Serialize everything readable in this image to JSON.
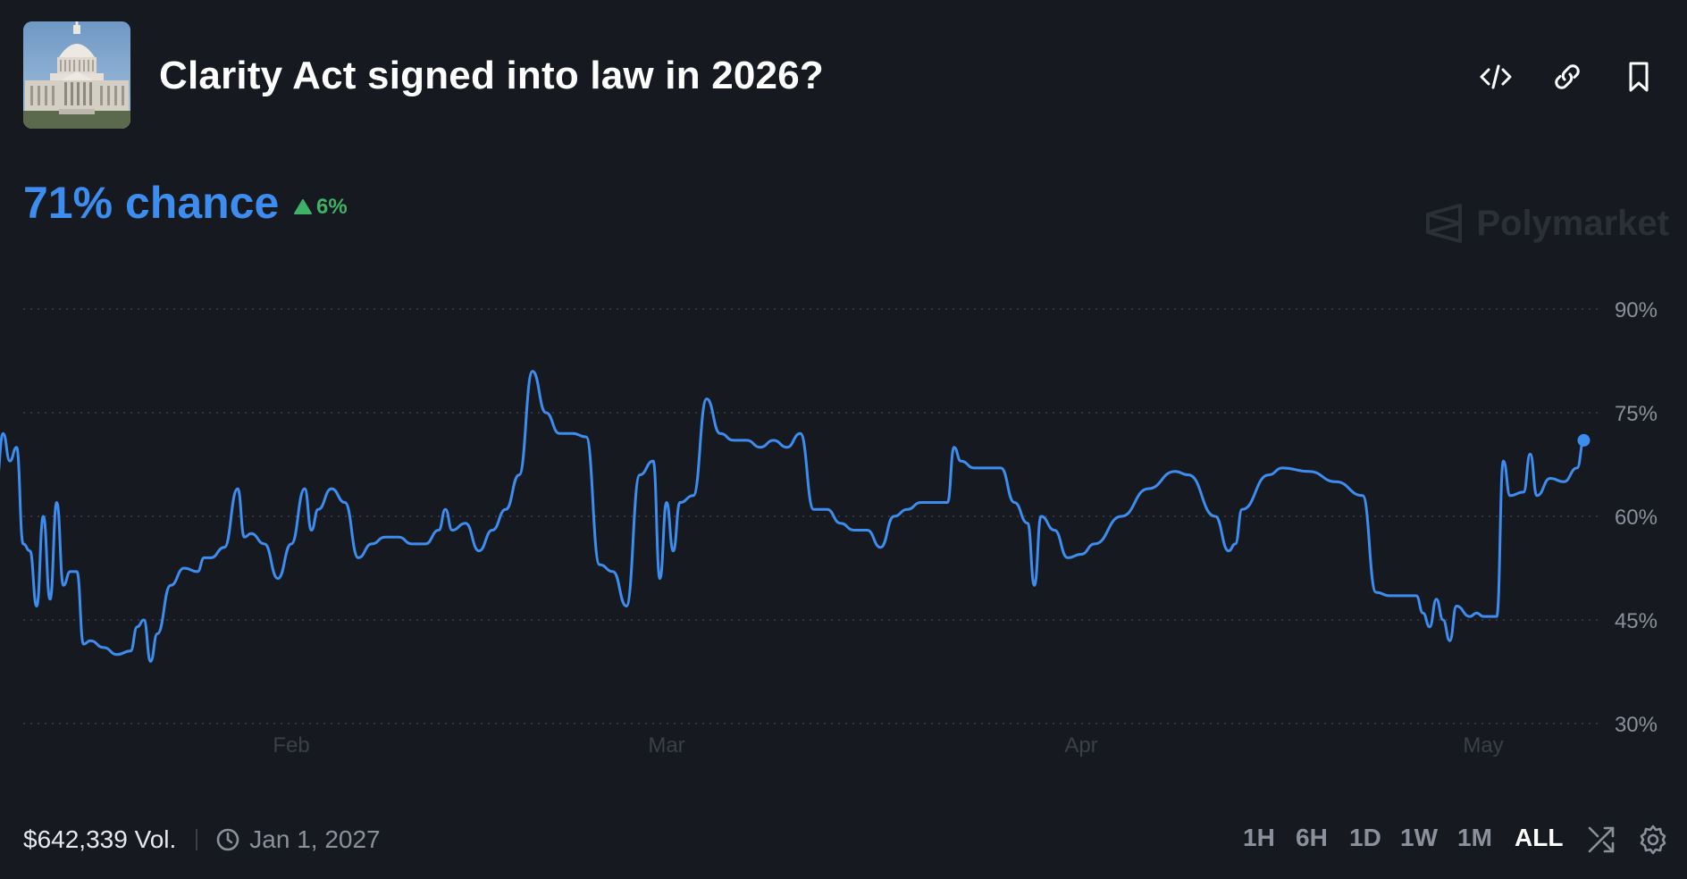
{
  "header": {
    "title": "Clarity Act signed into law in 2026?",
    "image_alt": "capitol-building"
  },
  "summary": {
    "chance_text": "71% chance",
    "change_text": "6%",
    "change_direction": "up"
  },
  "watermark": {
    "text": "Polymarket"
  },
  "footer": {
    "volume": "$642,339 Vol.",
    "end_date": "Jan 1, 2027",
    "ranges": [
      "1H",
      "6H",
      "1D",
      "1W",
      "1M",
      "ALL"
    ],
    "active_range": "ALL"
  },
  "icons": {
    "embed": "code-icon",
    "copy_link": "link-icon",
    "bookmark": "bookmark-icon",
    "clock": "clock-icon",
    "shuffle": "shuffle-icon",
    "settings": "gear-icon"
  },
  "colors": {
    "background": "#161a20",
    "line": "#3d8df0",
    "positive": "#3fb268",
    "muted": "#8b919c",
    "grid": "#3a3f48"
  },
  "chart_data": {
    "type": "line",
    "title": "",
    "xlabel": "",
    "ylabel": "",
    "x_ticks": [
      "Feb",
      "Mar",
      "Apr",
      "May"
    ],
    "x_tick_dates": [
      "2026-02-01",
      "2026-03-01",
      "2026-04-01",
      "2026-05-01"
    ],
    "y_ticks": [
      "90%",
      "75%",
      "60%",
      "45%",
      "30%"
    ],
    "y_tick_values": [
      90,
      75,
      60,
      45,
      30
    ],
    "ylim": [
      30,
      90
    ],
    "grid": true,
    "gridline_style": "dotted",
    "series": [
      {
        "values": [
          [
            "2026-01-10",
            65
          ],
          [
            "2026-01-10T12",
            72
          ],
          [
            "2026-01-11",
            68
          ],
          [
            "2026-01-11T12",
            70
          ],
          [
            "2026-01-12",
            56
          ],
          [
            "2026-01-12T12",
            55
          ],
          [
            "2026-01-13",
            47
          ],
          [
            "2026-01-13T12",
            60
          ],
          [
            "2026-01-14",
            48
          ],
          [
            "2026-01-14T12",
            62
          ],
          [
            "2026-01-15",
            50
          ],
          [
            "2026-01-15T12",
            52
          ],
          [
            "2026-01-16",
            52
          ],
          [
            "2026-01-16T12",
            41.5
          ],
          [
            "2026-01-17",
            42
          ],
          [
            "2026-01-18",
            41
          ],
          [
            "2026-01-19",
            40
          ],
          [
            "2026-01-20",
            40.5
          ],
          [
            "2026-01-20T12",
            44
          ],
          [
            "2026-01-21",
            45
          ],
          [
            "2026-01-21T12",
            39
          ],
          [
            "2026-01-22",
            43
          ],
          [
            "2026-01-23",
            50
          ],
          [
            "2026-01-24",
            52.5
          ],
          [
            "2026-01-25",
            52
          ],
          [
            "2026-01-25T12",
            54
          ],
          [
            "2026-01-26",
            54
          ],
          [
            "2026-01-27",
            55.5
          ],
          [
            "2026-01-28",
            64
          ],
          [
            "2026-01-28T12",
            57
          ],
          [
            "2026-01-29",
            57.5
          ],
          [
            "2026-01-30",
            56
          ],
          [
            "2026-01-31",
            51
          ],
          [
            "2026-02-01",
            56
          ],
          [
            "2026-02-02",
            64
          ],
          [
            "2026-02-02T12",
            58
          ],
          [
            "2026-02-03",
            61
          ],
          [
            "2026-02-04",
            64
          ],
          [
            "2026-02-05",
            62
          ],
          [
            "2026-02-06",
            54
          ],
          [
            "2026-02-07",
            56
          ],
          [
            "2026-02-08",
            57
          ],
          [
            "2026-02-09",
            57
          ],
          [
            "2026-02-10",
            56
          ],
          [
            "2026-02-11",
            56
          ],
          [
            "2026-02-12",
            58
          ],
          [
            "2026-02-12T12",
            61
          ],
          [
            "2026-02-13",
            58
          ],
          [
            "2026-02-14",
            59
          ],
          [
            "2026-02-15",
            55
          ],
          [
            "2026-02-16",
            58
          ],
          [
            "2026-02-17",
            61
          ],
          [
            "2026-02-18",
            66
          ],
          [
            "2026-02-19",
            81
          ],
          [
            "2026-02-20",
            75
          ],
          [
            "2026-02-21",
            72
          ],
          [
            "2026-02-22",
            72
          ],
          [
            "2026-02-23",
            71.5
          ],
          [
            "2026-02-24",
            53
          ],
          [
            "2026-02-25",
            52
          ],
          [
            "2026-02-26",
            47
          ],
          [
            "2026-02-27",
            66
          ],
          [
            "2026-02-28",
            68
          ],
          [
            "2026-02-28T12",
            51
          ],
          [
            "2026-03-01",
            62
          ],
          [
            "2026-03-01T12",
            55
          ],
          [
            "2026-03-02",
            62
          ],
          [
            "2026-03-03",
            63
          ],
          [
            "2026-03-04",
            77
          ],
          [
            "2026-03-05",
            72
          ],
          [
            "2026-03-06",
            71
          ],
          [
            "2026-03-07",
            71
          ],
          [
            "2026-03-08",
            70
          ],
          [
            "2026-03-09",
            71
          ],
          [
            "2026-03-10",
            70
          ],
          [
            "2026-03-11",
            72
          ],
          [
            "2026-03-12",
            61
          ],
          [
            "2026-03-13",
            61
          ],
          [
            "2026-03-14",
            59
          ],
          [
            "2026-03-15",
            58
          ],
          [
            "2026-03-16",
            58
          ],
          [
            "2026-03-17",
            55.5
          ],
          [
            "2026-03-18",
            60
          ],
          [
            "2026-03-19",
            61
          ],
          [
            "2026-03-20",
            62
          ],
          [
            "2026-03-21",
            62
          ],
          [
            "2026-03-22",
            62
          ],
          [
            "2026-03-22T12",
            70
          ],
          [
            "2026-03-23",
            68
          ],
          [
            "2026-03-24",
            67
          ],
          [
            "2026-03-25",
            67
          ],
          [
            "2026-03-26",
            67
          ],
          [
            "2026-03-27",
            62
          ],
          [
            "2026-03-28",
            59
          ],
          [
            "2026-03-28T12",
            50
          ],
          [
            "2026-03-29",
            60
          ],
          [
            "2026-03-30",
            58
          ],
          [
            "2026-03-31",
            54
          ],
          [
            "2026-04-01",
            54.5
          ],
          [
            "2026-04-02",
            56
          ],
          [
            "2026-04-04",
            60
          ],
          [
            "2026-04-06",
            64
          ],
          [
            "2026-04-08",
            66.5
          ],
          [
            "2026-04-09",
            66
          ],
          [
            "2026-04-11",
            60
          ],
          [
            "2026-04-12",
            55
          ],
          [
            "2026-04-12T12",
            56
          ],
          [
            "2026-04-13",
            61
          ],
          [
            "2026-04-15",
            66
          ],
          [
            "2026-04-16",
            67
          ],
          [
            "2026-04-18",
            66.5
          ],
          [
            "2026-04-20",
            65
          ],
          [
            "2026-04-22",
            63
          ],
          [
            "2026-04-23",
            49
          ],
          [
            "2026-04-24",
            48.5
          ],
          [
            "2026-04-25",
            48.5
          ],
          [
            "2026-04-26",
            48.5
          ],
          [
            "2026-04-26T12",
            46
          ],
          [
            "2026-04-27",
            44
          ],
          [
            "2026-04-27T12",
            48
          ],
          [
            "2026-04-28",
            45
          ],
          [
            "2026-04-28T12",
            42
          ],
          [
            "2026-04-29",
            47
          ],
          [
            "2026-04-30",
            45.5
          ],
          [
            "2026-04-30T12",
            46
          ],
          [
            "2026-05-01",
            45.5
          ],
          [
            "2026-05-02",
            45.5
          ],
          [
            "2026-05-02T12",
            68
          ],
          [
            "2026-05-03",
            63
          ],
          [
            "2026-05-04",
            63.5
          ],
          [
            "2026-05-04T12",
            69
          ],
          [
            "2026-05-05",
            63
          ],
          [
            "2026-05-06",
            65.5
          ],
          [
            "2026-05-07",
            65
          ],
          [
            "2026-05-08",
            67
          ],
          [
            "2026-05-08T12",
            71
          ]
        ]
      }
    ]
  }
}
